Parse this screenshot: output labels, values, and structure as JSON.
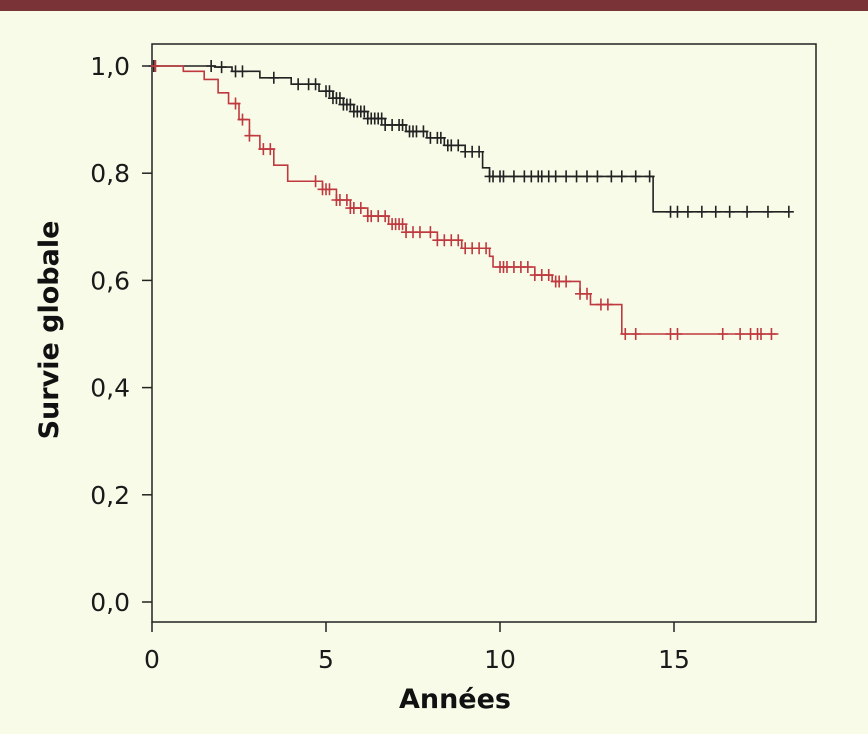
{
  "chart_data": {
    "type": "line",
    "title": "",
    "xlabel": "Années",
    "ylabel": "Survie globale",
    "xlim": [
      0,
      18.8
    ],
    "ylim": [
      0,
      1.0
    ],
    "x_ticks": [
      0,
      5,
      10,
      15
    ],
    "x_tick_labels": [
      "0",
      "5",
      "10",
      "15"
    ],
    "y_ticks": [
      0,
      0.2,
      0.4,
      0.6,
      0.8,
      1.0
    ],
    "y_tick_labels": [
      "0,0",
      "0,2",
      "0,4",
      "0,6",
      "0,8",
      "1,0"
    ],
    "grid": false,
    "legend": "none",
    "colors": {
      "frame": "#7a3438",
      "background": "#f7fbe8",
      "series_a": "#222222",
      "series_b": "#c0393e"
    },
    "series": [
      {
        "color": "#222222",
        "steps": [
          [
            0,
            1.0
          ],
          [
            1.8,
            0.998
          ],
          [
            2.3,
            0.99
          ],
          [
            3.1,
            0.978
          ],
          [
            4.0,
            0.966
          ],
          [
            4.8,
            0.953
          ],
          [
            5.2,
            0.94
          ],
          [
            5.5,
            0.928
          ],
          [
            5.8,
            0.915
          ],
          [
            6.2,
            0.902
          ],
          [
            6.7,
            0.89
          ],
          [
            7.3,
            0.878
          ],
          [
            7.9,
            0.866
          ],
          [
            8.4,
            0.852
          ],
          [
            9.0,
            0.84
          ],
          [
            9.5,
            0.81
          ],
          [
            9.7,
            0.794
          ],
          [
            14.4,
            0.794
          ],
          [
            14.4,
            0.728
          ],
          [
            18.3,
            0.728
          ]
        ],
        "censor": [
          0.05,
          1.7,
          2.0,
          2.4,
          2.6,
          3.5,
          4.2,
          4.5,
          4.7,
          5.0,
          5.1,
          5.2,
          5.3,
          5.4,
          5.5,
          5.6,
          5.7,
          5.8,
          5.9,
          6.0,
          6.1,
          6.2,
          6.3,
          6.4,
          6.5,
          6.6,
          6.7,
          6.9,
          7.1,
          7.2,
          7.4,
          7.5,
          7.6,
          7.8,
          8.0,
          8.2,
          8.3,
          8.5,
          8.6,
          8.8,
          9.0,
          9.2,
          9.4,
          9.7,
          9.8,
          10.0,
          10.1,
          10.4,
          10.7,
          10.9,
          11.1,
          11.2,
          11.4,
          11.6,
          11.9,
          12.2,
          12.5,
          12.8,
          13.2,
          13.5,
          13.9,
          14.3,
          14.9,
          15.1,
          15.4,
          15.8,
          16.2,
          16.6,
          17.1,
          17.7,
          18.3
        ]
      },
      {
        "color": "#c0393e",
        "steps": [
          [
            0,
            1.0
          ],
          [
            0.9,
            0.99
          ],
          [
            1.5,
            0.975
          ],
          [
            1.9,
            0.95
          ],
          [
            2.2,
            0.93
          ],
          [
            2.5,
            0.9
          ],
          [
            2.8,
            0.87
          ],
          [
            3.1,
            0.845
          ],
          [
            3.5,
            0.815
          ],
          [
            3.9,
            0.785
          ],
          [
            4.9,
            0.77
          ],
          [
            5.3,
            0.75
          ],
          [
            5.7,
            0.735
          ],
          [
            6.2,
            0.72
          ],
          [
            6.8,
            0.705
          ],
          [
            7.3,
            0.69
          ],
          [
            8.2,
            0.675
          ],
          [
            8.9,
            0.66
          ],
          [
            9.7,
            0.645
          ],
          [
            9.8,
            0.625
          ],
          [
            11.0,
            0.61
          ],
          [
            11.5,
            0.598
          ],
          [
            12.3,
            0.575
          ],
          [
            12.6,
            0.555
          ],
          [
            13.5,
            0.5
          ],
          [
            18.0,
            0.5
          ]
        ],
        "censor": [
          0.1,
          2.4,
          2.6,
          2.8,
          3.2,
          3.4,
          4.7,
          4.9,
          5.0,
          5.1,
          5.3,
          5.4,
          5.6,
          5.7,
          5.8,
          6.0,
          6.2,
          6.3,
          6.5,
          6.7,
          6.9,
          7.0,
          7.1,
          7.2,
          7.3,
          7.5,
          7.7,
          8.0,
          8.2,
          8.4,
          8.6,
          8.8,
          9.0,
          9.2,
          9.4,
          9.6,
          10.0,
          10.1,
          10.2,
          10.4,
          10.6,
          10.8,
          11.0,
          11.2,
          11.4,
          11.6,
          11.7,
          11.9,
          12.3,
          12.5,
          12.9,
          13.1,
          13.6,
          13.9,
          14.9,
          15.1,
          16.4,
          16.9,
          17.2,
          17.4,
          17.5,
          17.8
        ]
      }
    ]
  }
}
